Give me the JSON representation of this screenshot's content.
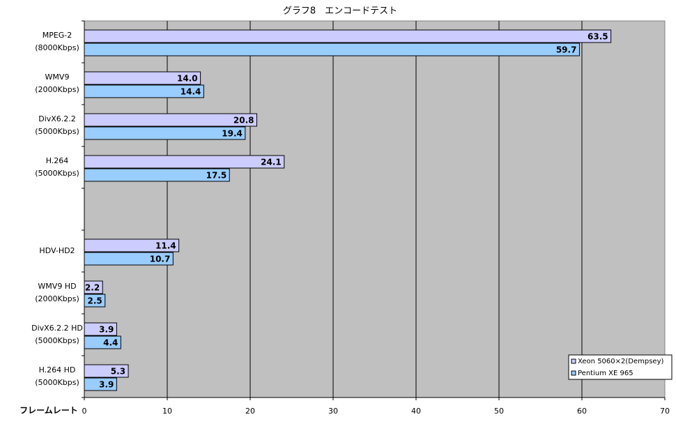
{
  "chart_data": {
    "type": "barh",
    "title": "グラフ8　エンコードテスト",
    "xlabel": "フレームレート",
    "categories": [
      [
        "MPEG-2",
        "(8000Kbps)"
      ],
      [
        "WMV9",
        "(2000Kbps)"
      ],
      [
        "DivX6.2.2",
        "(5000Kbps)"
      ],
      [
        "H.264",
        "(5000Kbps)"
      ],
      null,
      [
        "HDV-HD2"
      ],
      [
        "WMV9 HD",
        "(2000Kbps)"
      ],
      [
        "DivX6.2.2 HD",
        "(5000Kbps)"
      ],
      [
        "H.264 HD",
        "(5000Kbps)"
      ]
    ],
    "series": [
      {
        "name": "Xeon 5060×2(Dempsey)",
        "color": "#ccccff",
        "values": [
          63.5,
          14.0,
          20.8,
          24.1,
          null,
          11.4,
          2.2,
          3.9,
          5.3
        ],
        "value_labels": [
          "63.5",
          "14.0",
          "20.8",
          "24.1",
          null,
          "11.4",
          "2.2",
          "3.9",
          "5.3"
        ]
      },
      {
        "name": "Pentium XE 965",
        "color": "#99ccff",
        "values": [
          59.7,
          14.4,
          19.4,
          17.5,
          null,
          10.7,
          2.5,
          4.4,
          3.9
        ],
        "value_labels": [
          "59.7",
          "14.4",
          "19.4",
          "17.5",
          null,
          "10.7",
          "2.5",
          "4.4",
          "3.9"
        ]
      }
    ],
    "xlim": [
      0,
      70
    ],
    "xticks": [
      0,
      10,
      20,
      30,
      40,
      50,
      60,
      70
    ],
    "grid": true,
    "legend": "lower right",
    "background": "#c0c0c0"
  }
}
